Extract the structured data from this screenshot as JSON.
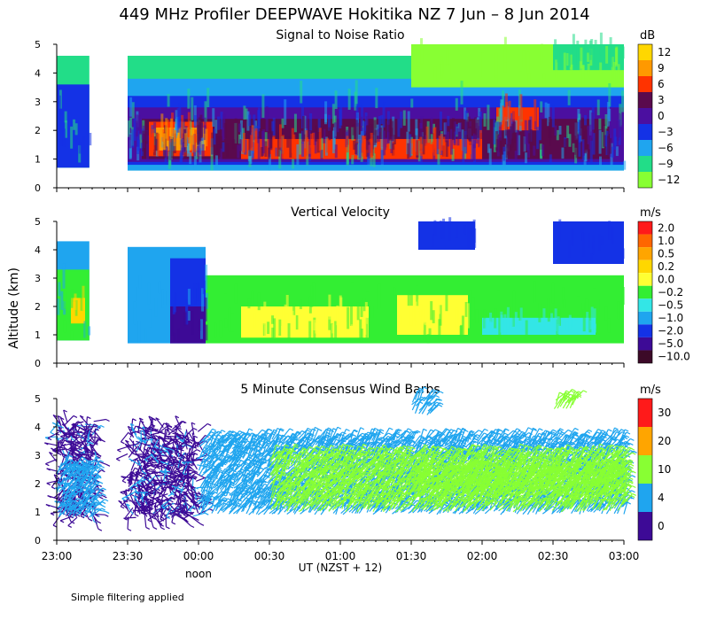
{
  "title": "449 MHz Profiler DEEPWAVE Hokitika NZ  7 Jun –  8 Jun 2014",
  "footnote": "Simple filtering applied",
  "xaxis": {
    "label": "UT  (NZST + 12)",
    "sublabel": "noon",
    "range_hours": [
      0,
      4
    ],
    "ticks": [
      {
        "h": 0,
        "label": "23:00"
      },
      {
        "h": 0.5,
        "label": "23:30"
      },
      {
        "h": 1,
        "label": "00:00"
      },
      {
        "h": 1.5,
        "label": "00:30"
      },
      {
        "h": 2,
        "label": "01:00"
      },
      {
        "h": 2.5,
        "label": "01:30"
      },
      {
        "h": 3,
        "label": "02:00"
      },
      {
        "h": 3.5,
        "label": "02:30"
      },
      {
        "h": 4,
        "label": "03:00"
      }
    ]
  },
  "yaxis": {
    "label": "Altitude (km)",
    "range": [
      0,
      5
    ],
    "ticks": [
      "0",
      "1",
      "2",
      "3",
      "4",
      "5"
    ]
  },
  "chart_data": [
    {
      "type": "heatmap",
      "title": "Signal to Noise Ratio",
      "unit": "dB",
      "legend": [
        {
          "label": "12",
          "color": "#ffd700"
        },
        {
          "label": "9",
          "color": "#ff9900"
        },
        {
          "label": "6",
          "color": "#ff3300"
        },
        {
          "label": "3",
          "color": "#5a0a4d"
        },
        {
          "label": "0",
          "color": "#4b0fa0"
        },
        {
          "label": "−3",
          "color": "#1432e6"
        },
        {
          "label": "−6",
          "color": "#1fa5ef"
        },
        {
          "label": "−9",
          "color": "#22dd88"
        },
        {
          "label": "−12",
          "color": "#88ff33"
        }
      ],
      "layers": [
        {
          "t0": 0,
          "t1": 0.23,
          "z0": 0.7,
          "z1": 4.6,
          "value": -9
        },
        {
          "t0": 0,
          "t1": 0.23,
          "z0": 0.7,
          "z1": 3.6,
          "value": -3
        },
        {
          "t0": 0.5,
          "t1": 4.0,
          "z0": 0.6,
          "z1": 4.6,
          "value": -9
        },
        {
          "t0": 0.5,
          "t1": 4.0,
          "z0": 0.6,
          "z1": 3.8,
          "value": -6
        },
        {
          "t0": 0.5,
          "t1": 4.0,
          "z0": 0.8,
          "z1": 3.2,
          "value": -3
        },
        {
          "t0": 0.5,
          "t1": 4.0,
          "z0": 0.9,
          "z1": 2.8,
          "value": 0
        },
        {
          "t0": 0.6,
          "t1": 3.9,
          "z0": 1.0,
          "z1": 2.4,
          "value": 3
        },
        {
          "t0": 0.65,
          "t1": 1.1,
          "z0": 1.1,
          "z1": 2.3,
          "value": 6
        },
        {
          "t0": 0.7,
          "t1": 1.05,
          "z0": 1.3,
          "z1": 2.1,
          "value": 9
        },
        {
          "t0": 1.3,
          "t1": 3.0,
          "z0": 1.0,
          "z1": 1.7,
          "value": 6
        },
        {
          "t0": 3.1,
          "t1": 3.4,
          "z0": 2.0,
          "z1": 2.8,
          "value": 6
        },
        {
          "t0": 2.5,
          "t1": 4.0,
          "z0": 3.5,
          "z1": 5.0,
          "value": -12
        },
        {
          "t0": 3.5,
          "t1": 4.0,
          "z0": 4.1,
          "z1": 5.0,
          "value": -9
        }
      ]
    },
    {
      "type": "heatmap",
      "title": "Vertical Velocity",
      "unit": "m/s",
      "legend": [
        {
          "label": "2.0",
          "color": "#ff1a1a"
        },
        {
          "label": "1.0",
          "color": "#ff6600"
        },
        {
          "label": "0.5",
          "color": "#ffa500"
        },
        {
          "label": "0.2",
          "color": "#ffd700"
        },
        {
          "label": "0.0",
          "color": "#ffff33"
        },
        {
          "label": "−0.2",
          "color": "#33ee33"
        },
        {
          "label": "−0.5",
          "color": "#33e6e6"
        },
        {
          "label": "−1.0",
          "color": "#1fa5ef"
        },
        {
          "label": "−2.0",
          "color": "#1432e6"
        },
        {
          "label": "−5.0",
          "color": "#3d0a96"
        },
        {
          "label": "−10.0",
          "color": "#3c0a28"
        }
      ],
      "layers": [
        {
          "t0": 0,
          "t1": 0.23,
          "z0": 0.8,
          "z1": 4.3,
          "value": -1.0
        },
        {
          "t0": 0,
          "t1": 0.23,
          "z0": 0.8,
          "z1": 3.3,
          "value": -0.2
        },
        {
          "t0": 0.1,
          "t1": 0.2,
          "z0": 1.4,
          "z1": 2.3,
          "value": 0.2
        },
        {
          "t0": 0.5,
          "t1": 1.05,
          "z0": 0.7,
          "z1": 4.1,
          "value": -1.0
        },
        {
          "t0": 0.8,
          "t1": 1.05,
          "z0": 0.7,
          "z1": 3.7,
          "value": -2.0
        },
        {
          "t0": 0.8,
          "t1": 1.05,
          "z0": 0.7,
          "z1": 2.0,
          "value": -5.0
        },
        {
          "t0": 1.05,
          "t1": 4.0,
          "z0": 0.7,
          "z1": 3.1,
          "value": -0.2
        },
        {
          "t0": 1.3,
          "t1": 2.2,
          "z0": 0.9,
          "z1": 2.0,
          "value": 0.0
        },
        {
          "t0": 2.4,
          "t1": 2.9,
          "z0": 1.0,
          "z1": 2.4,
          "value": 0.0
        },
        {
          "t0": 3.0,
          "t1": 3.8,
          "z0": 1.0,
          "z1": 1.6,
          "value": -0.5
        },
        {
          "t0": 2.55,
          "t1": 2.95,
          "z0": 4.0,
          "z1": 5.0,
          "value": -2.0
        },
        {
          "t0": 3.5,
          "t1": 4.0,
          "z0": 3.5,
          "z1": 5.0,
          "value": -2.0
        }
      ]
    },
    {
      "type": "wind-barbs",
      "title": "5 Minute Consensus Wind Barbs",
      "unit": "m/s",
      "legend": [
        {
          "label": "30",
          "color": "#ff1a1a"
        },
        {
          "label": "20",
          "color": "#ffa500"
        },
        {
          "label": "10",
          "color": "#88ff33"
        },
        {
          "label": "4",
          "color": "#1fa5ef"
        },
        {
          "label": "0",
          "color": "#3d0a96"
        }
      ],
      "groups": [
        {
          "t0": 0.0,
          "t1": 0.27,
          "z0": 0.8,
          "z1": 4.2,
          "speed": 3
        },
        {
          "t0": 0.0,
          "t1": 0.27,
          "z0": 0.8,
          "z1": 2.6,
          "speed": 6
        },
        {
          "t0": 0.5,
          "t1": 1.0,
          "z0": 0.8,
          "z1": 4.0,
          "speed": 3
        },
        {
          "t0": 1.0,
          "t1": 4.0,
          "z0": 0.9,
          "z1": 3.6,
          "speed": 8
        },
        {
          "t0": 1.5,
          "t1": 4.0,
          "z0": 1.0,
          "z1": 3.0,
          "speed": 12
        },
        {
          "t0": 2.5,
          "t1": 4.0,
          "z0": 1.5,
          "z1": 2.5,
          "speed": 16
        },
        {
          "t0": 2.5,
          "t1": 2.65,
          "z0": 4.4,
          "z1": 5.0,
          "speed": 7
        },
        {
          "t0": 3.5,
          "t1": 3.65,
          "z0": 4.6,
          "z1": 5.0,
          "speed": 12
        }
      ]
    }
  ]
}
